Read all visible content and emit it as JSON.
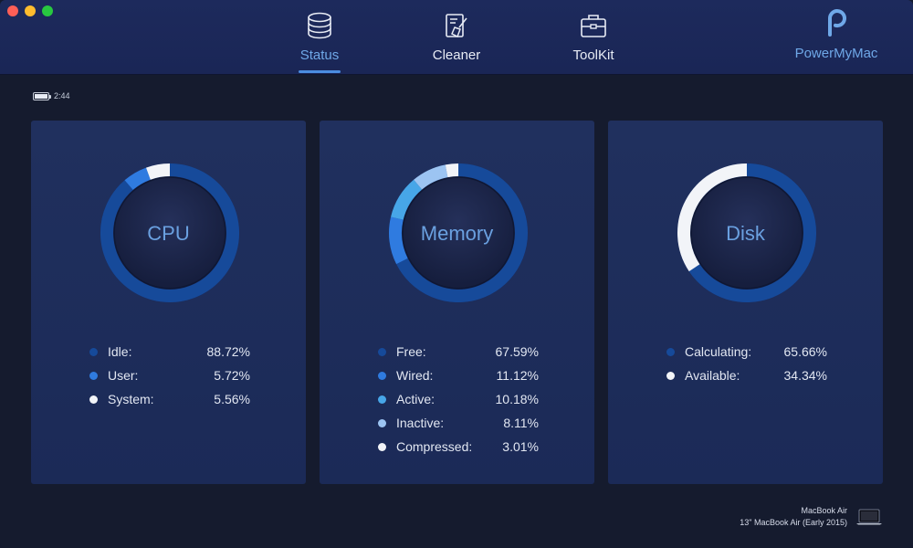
{
  "nav": {
    "tabs": [
      {
        "label": "Status",
        "icon": "database-icon",
        "active": true
      },
      {
        "label": "Cleaner",
        "icon": "broom-icon",
        "active": false
      },
      {
        "label": "ToolKit",
        "icon": "toolbox-icon",
        "active": false
      }
    ],
    "brand": "PowerMyMac"
  },
  "battery": {
    "time": "2:44"
  },
  "colors": {
    "accent": "#4b8de0",
    "ring_track": "#1a4aa0",
    "c1": "#164a9a",
    "c2": "#2f7be0",
    "c3": "#47a6e8",
    "c4": "#9cc4f2",
    "c5": "#f2f4f8"
  },
  "cards": [
    {
      "title": "CPU",
      "items": [
        {
          "name": "Idle:",
          "value": "88.72%",
          "pct": 88.72
        },
        {
          "name": "User:",
          "value": "5.72%",
          "pct": 5.72
        },
        {
          "name": "System:",
          "value": "5.56%",
          "pct": 5.56
        }
      ]
    },
    {
      "title": "Memory",
      "items": [
        {
          "name": "Free:",
          "value": "67.59%",
          "pct": 67.59
        },
        {
          "name": "Wired:",
          "value": "11.12%",
          "pct": 11.12
        },
        {
          "name": "Active:",
          "value": "10.18%",
          "pct": 10.18
        },
        {
          "name": "Inactive:",
          "value": "8.11%",
          "pct": 8.11
        },
        {
          "name": "Compressed:",
          "value": "3.01%",
          "pct": 3.01
        }
      ]
    },
    {
      "title": "Disk",
      "items": [
        {
          "name": "Calculating:",
          "value": "65.66%",
          "pct": 65.66
        },
        {
          "name": "Available:",
          "value": "34.34%",
          "pct": 34.34
        }
      ]
    }
  ],
  "device": {
    "name": "MacBook Air",
    "model": "13\" MacBook Air (Early 2015)"
  }
}
